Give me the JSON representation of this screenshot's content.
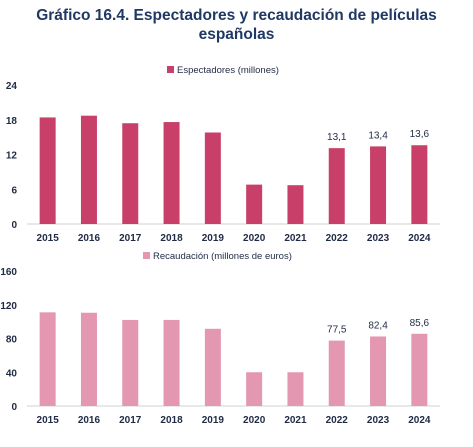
{
  "title_line1": "Gráfico 16.4. Espectadores y recaudación de películas",
  "title_line2": "españolas",
  "chart_data": [
    {
      "type": "bar",
      "categories": [
        "2015",
        "2016",
        "2017",
        "2018",
        "2019",
        "2020",
        "2021",
        "2022",
        "2023",
        "2024"
      ],
      "series": [
        {
          "name": "Espectadores (millones)",
          "values": [
            18.4,
            18.7,
            17.4,
            17.6,
            15.8,
            6.8,
            6.7,
            13.1,
            13.4,
            13.6
          ],
          "color": "#c8406a"
        }
      ],
      "data_labels": [
        "",
        "",
        "",
        "",
        "",
        "",
        "",
        "13,1",
        "13,4",
        "13,6"
      ],
      "yticks": [
        "0",
        "6",
        "12",
        "18",
        "24"
      ],
      "ylim": [
        0,
        24
      ],
      "grid": false,
      "legend": "top-center"
    },
    {
      "type": "bar",
      "categories": [
        "2015",
        "2016",
        "2017",
        "2018",
        "2019",
        "2020",
        "2021",
        "2022",
        "2023",
        "2024"
      ],
      "series": [
        {
          "name": "Recaudación (millones de euros)",
          "values": [
            111.0,
            110.5,
            102.0,
            102.0,
            91.5,
            40.0,
            40.0,
            77.5,
            82.4,
            85.6
          ],
          "color": "#e397b0"
        }
      ],
      "data_labels": [
        "",
        "",
        "",
        "",
        "",
        "",
        "",
        "77,5",
        "82,4",
        "85,6"
      ],
      "yticks": [
        "0",
        "40",
        "80",
        "120",
        "160"
      ],
      "ylim": [
        0,
        160
      ],
      "grid": false,
      "legend": "top-center"
    }
  ]
}
